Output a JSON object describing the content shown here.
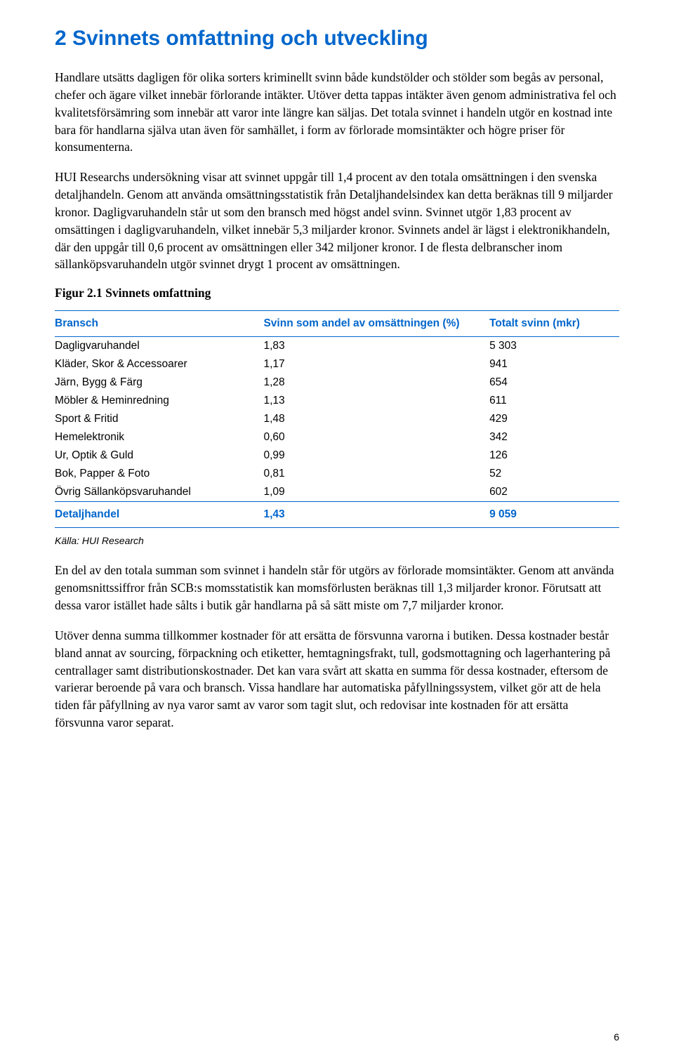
{
  "heading": "2 Svinnets omfattning och utveckling",
  "para1": "Handlare utsätts dagligen för olika sorters kriminellt svinn både kundstölder och stölder som begås av personal, chefer och ägare vilket innebär förlorande intäkter. Utöver detta tappas intäkter även genom administrativa fel och kvalitetsförsämring som innebär att varor inte längre kan säljas. Det totala svinnet i handeln utgör en kostnad inte bara för handlarna själva utan även för samhället, i form av förlorade momsintäkter och högre priser för konsumenterna.",
  "para2": "HUI Researchs undersökning visar att svinnet uppgår till 1,4 procent av den totala omsättningen i den svenska detaljhandeln. Genom att använda omsättningsstatistik från Detaljhandelsindex kan detta beräknas till 9 miljarder kronor. Dagligvaruhandeln står ut som den bransch med högst andel svinn. Svinnet utgör 1,83 procent av omsättingen i dagligvaruhandeln, vilket innebär 5,3 miljarder kronor. Svinnets andel är lägst i elektronikhandeln, där den uppgår till 0,6 procent av omsättningen eller 342 miljoner kronor. I de flesta delbranscher inom sällanköpsvaruhandeln utgör svinnet drygt 1 procent av omsättningen.",
  "figure_title": "Figur 2.1 Svinnets omfattning",
  "table": {
    "headers": {
      "bransch": "Bransch",
      "pct": "Svinn som andel av omsättningen (%)",
      "total": "Totalt svinn (mkr)"
    },
    "rows": [
      {
        "bransch": "Dagligvaruhandel",
        "pct": "1,83",
        "total": "5 303"
      },
      {
        "bransch": "Kläder, Skor & Accessoarer",
        "pct": "1,17",
        "total": "941"
      },
      {
        "bransch": "Järn, Bygg & Färg",
        "pct": "1,28",
        "total": "654"
      },
      {
        "bransch": "Möbler & Heminredning",
        "pct": "1,13",
        "total": "611"
      },
      {
        "bransch": "Sport & Fritid",
        "pct": "1,48",
        "total": "429"
      },
      {
        "bransch": "Hemelektronik",
        "pct": "0,60",
        "total": "342"
      },
      {
        "bransch": "Ur, Optik & Guld",
        "pct": "0,99",
        "total": "126"
      },
      {
        "bransch": "Bok, Papper & Foto",
        "pct": "0,81",
        "total": "52"
      },
      {
        "bransch": "Övrig Sällanköpsvaruhandel",
        "pct": "1,09",
        "total": "602"
      }
    ],
    "total_row": {
      "bransch": "Detaljhandel",
      "pct": "1,43",
      "total": "9 059"
    },
    "colors": {
      "accent": "#0066cc",
      "text": "#000000",
      "background": "#ffffff"
    }
  },
  "source": "Källa: HUI Research",
  "para3": "En del av den totala summan som svinnet i handeln står för utgörs av förlorade momsintäkter. Genom att använda genomsnittssiffror från SCB:s momsstatistik kan momsförlusten beräknas till 1,3 miljarder kronor. Förutsatt att dessa varor istället hade sålts i butik går handlarna på så sätt miste om 7,7 miljarder kronor.",
  "para4": "Utöver denna summa tillkommer kostnader för att ersätta de försvunna varorna i butiken. Dessa kostnader består bland annat av sourcing, förpackning och etiketter, hemtagningsfrakt, tull, godsmottagning och lagerhantering på centrallager samt distributionskostnader. Det kan vara svårt att skatta en summa för dessa kostnader, eftersom de varierar beroende på vara och bransch. Vissa handlare har automatiska påfyllningssystem, vilket gör att de hela tiden får påfyllning av nya varor samt av varor som tagit slut, och redovisar inte kostnaden för att ersätta försvunna varor separat.",
  "page_number": "6"
}
